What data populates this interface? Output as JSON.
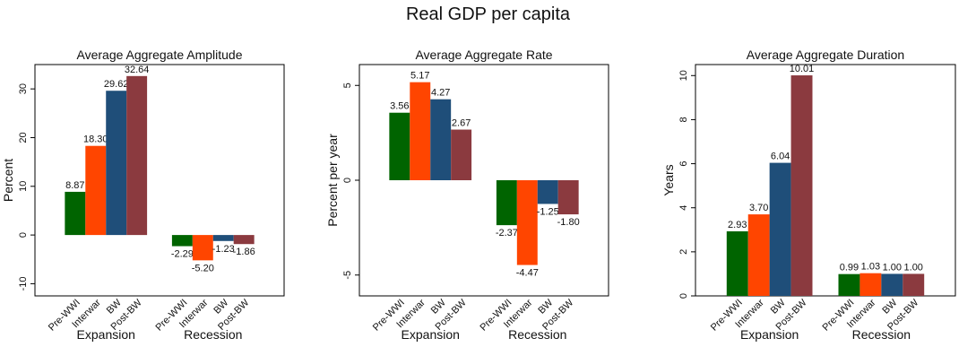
{
  "suptitle": "Real GDP per capita",
  "colors": {
    "Pre-WWI": "#006400",
    "Interwar": "#ff4500",
    "BW": "#1f4e79",
    "Post-BW": "#8b3a3f"
  },
  "chart_data": [
    {
      "type": "bar",
      "title": "Average Aggregate Amplitude",
      "ylabel": "Percent",
      "xlabel": "",
      "ylim": [
        -12.5,
        35
      ],
      "yticks": [
        -10,
        0,
        10,
        20,
        30
      ],
      "groups": [
        "Expansion",
        "Recession"
      ],
      "categories": [
        "Pre-WWI",
        "Interwar",
        "BW",
        "Post-BW"
      ],
      "series": [
        {
          "group": "Expansion",
          "values": [
            8.87,
            18.3,
            29.62,
            32.64
          ],
          "labels": [
            "8.87",
            "18.30",
            "29.62",
            "32.64"
          ]
        },
        {
          "group": "Recession",
          "values": [
            -2.29,
            -5.2,
            -1.23,
            -1.86
          ],
          "labels": [
            "-2.29",
            "-5.20",
            "-1.23",
            "-1.86"
          ]
        }
      ]
    },
    {
      "type": "bar",
      "title": "Average Aggregate Rate",
      "ylabel": "Percent per year",
      "xlabel": "",
      "ylim": [
        -6.1,
        6.1
      ],
      "yticks": [
        -5,
        0,
        5
      ],
      "groups": [
        "Expansion",
        "Recession"
      ],
      "categories": [
        "Pre-WWI",
        "Interwar",
        "BW",
        "Post-BW"
      ],
      "series": [
        {
          "group": "Expansion",
          "values": [
            3.56,
            5.17,
            4.27,
            2.67
          ],
          "labels": [
            "3.56",
            "5.17",
            "4.27",
            "2.67"
          ]
        },
        {
          "group": "Recession",
          "values": [
            -2.37,
            -4.47,
            -1.25,
            -1.8
          ],
          "labels": [
            "-2.37",
            "-4.47",
            "-1.25",
            "-1.80"
          ]
        }
      ]
    },
    {
      "type": "bar",
      "title": "Average Aggregate Duration",
      "ylabel": "Years",
      "xlabel": "",
      "ylim": [
        0,
        10.5
      ],
      "yticks": [
        0,
        2,
        4,
        6,
        8,
        10
      ],
      "groups": [
        "Expansion",
        "Recession"
      ],
      "categories": [
        "Pre-WWI",
        "Interwar",
        "BW",
        "Post-BW"
      ],
      "series": [
        {
          "group": "Expansion",
          "values": [
            2.93,
            3.7,
            6.04,
            10.01
          ],
          "labels": [
            "2.93",
            "3.70",
            "6.04",
            "10.01"
          ]
        },
        {
          "group": "Recession",
          "values": [
            0.99,
            1.03,
            1.0,
            1.0
          ],
          "labels": [
            "0.99",
            "1.03",
            "1.00",
            "1.00"
          ]
        }
      ]
    }
  ]
}
